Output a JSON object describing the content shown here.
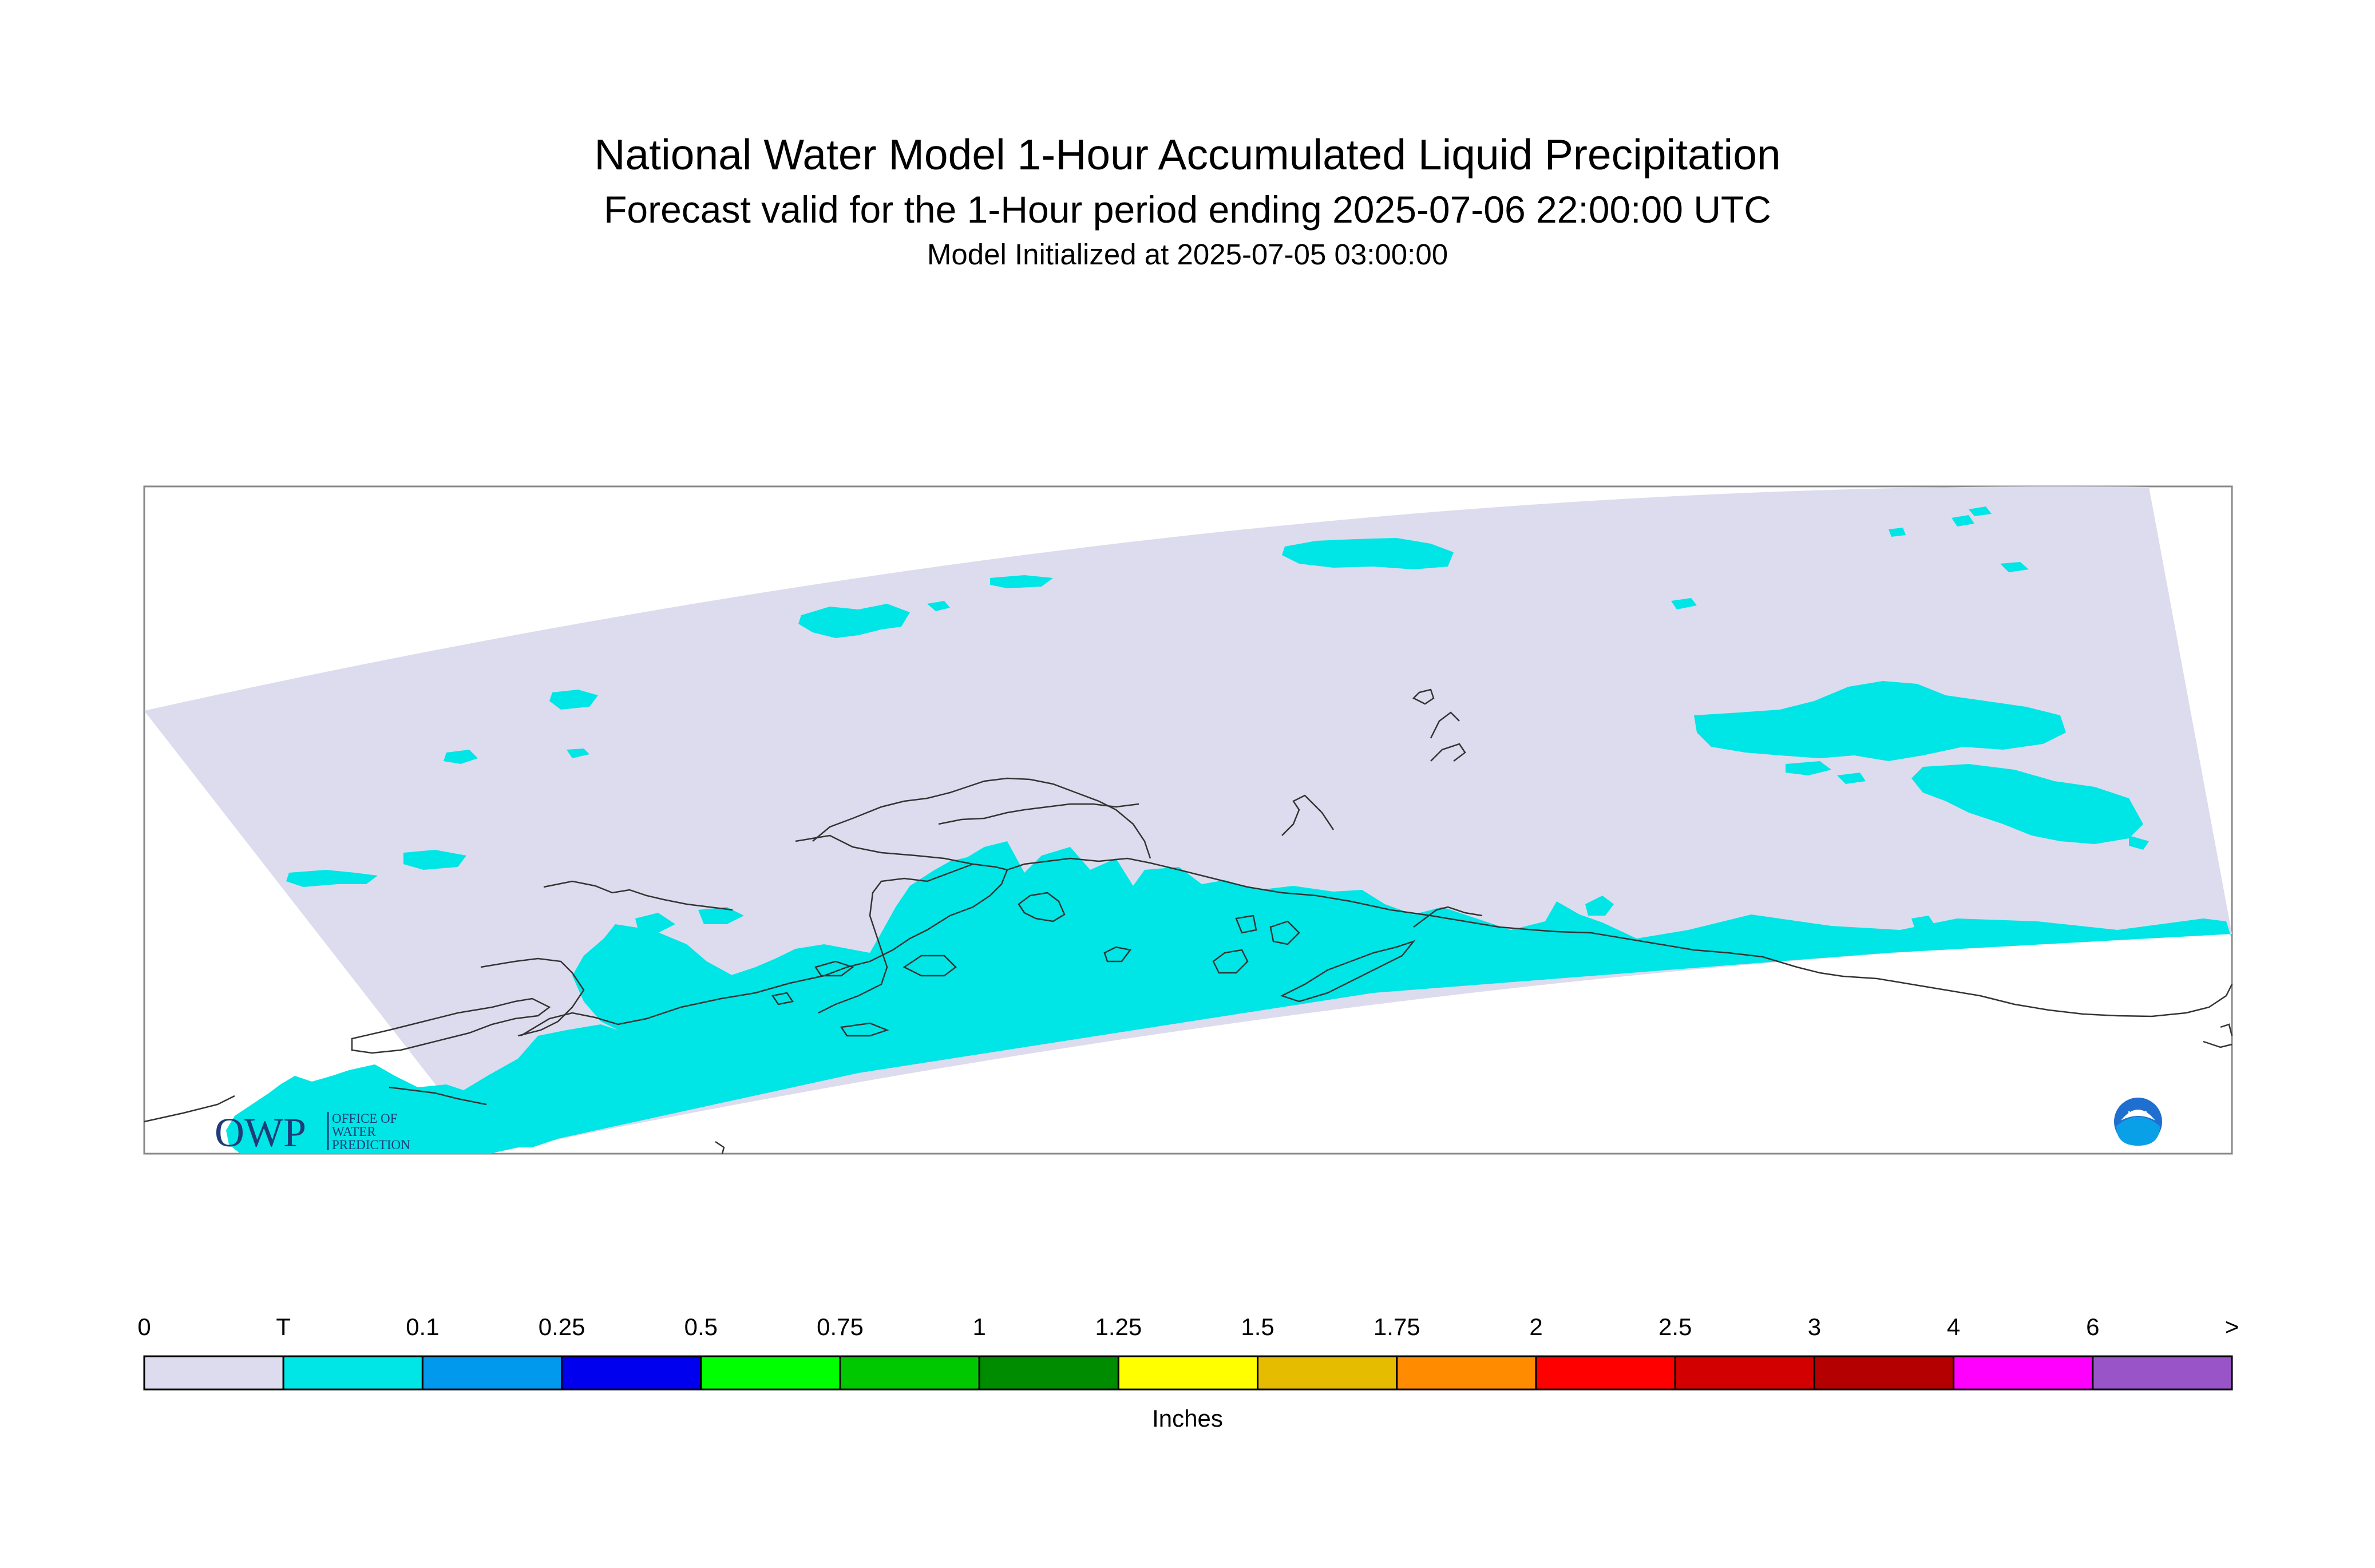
{
  "header": {
    "title": "National Water Model 1-Hour Accumulated Liquid Precipitation",
    "subtitle": "Forecast valid for the 1-Hour period ending 2025-07-06 22:00:00 UTC",
    "initialized": "Model Initialized at 2025-07-05 03:00:00"
  },
  "logos": {
    "owp_mark": "OWP",
    "owp_line1": "OFFICE OF",
    "owp_line2": "WATER",
    "owp_line3": "PREDICTION",
    "noaa_text": "NOAA"
  },
  "colors": {
    "domain_fill": "#dcdcee",
    "precip_trace": "#00e5e5",
    "coastline": "#333333"
  },
  "legend": {
    "labels": [
      "0",
      "T",
      "0.1",
      "0.25",
      "0.5",
      "0.75",
      "1",
      "1.25",
      "1.5",
      "1.75",
      "2",
      "2.5",
      "3",
      "4",
      "6",
      ">"
    ],
    "colors": [
      "#dcdcee",
      "#00e5e5",
      "#0099ee",
      "#0000ee",
      "#00ff00",
      "#00c800",
      "#008c00",
      "#ffff00",
      "#e6bc00",
      "#ff8c00",
      "#ff0000",
      "#d20000",
      "#b40000",
      "#ff00ff",
      "#9955c8"
    ],
    "units": "Inches"
  }
}
